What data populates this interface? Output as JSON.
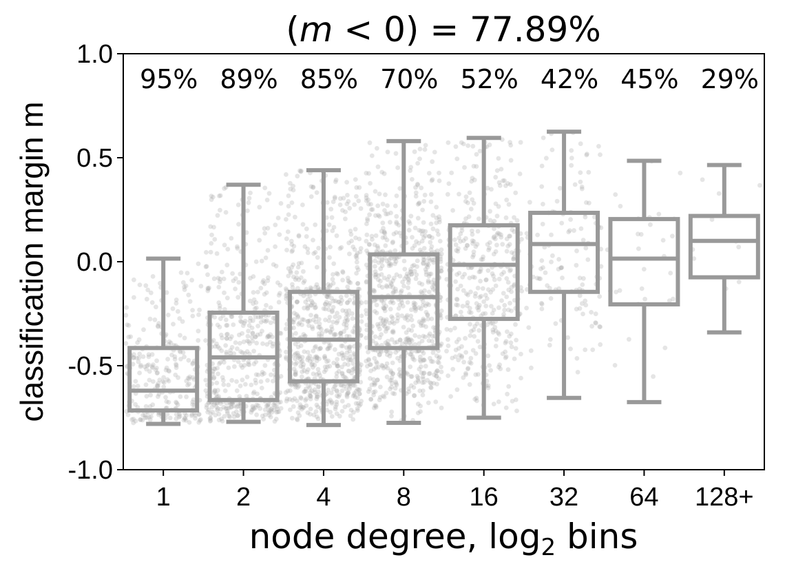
{
  "chart_data": {
    "type": "box",
    "title": {
      "prefix": "(",
      "variable": "m",
      "relation": " < 0) = ",
      "value": "77.89%"
    },
    "xlabel": {
      "text": "node degree, log",
      "subscript": "2",
      "suffix": " bins"
    },
    "ylabel": "classification margin m",
    "ylim": [
      -1.0,
      1.0
    ],
    "yticks": [
      -1.0,
      -0.5,
      0.0,
      0.5,
      1.0
    ],
    "ytick_labels": [
      "-1.0",
      "-0.5",
      "0.0",
      "0.5",
      "1.0"
    ],
    "categories": [
      "1",
      "2",
      "4",
      "8",
      "16",
      "32",
      "64",
      "128+"
    ],
    "annotations": [
      "95%",
      "89%",
      "85%",
      "70%",
      "52%",
      "42%",
      "45%",
      "29%"
    ],
    "box_color": "#999999",
    "point_color": "#aaaaaa",
    "boxes": [
      {
        "category": "1",
        "whisker_low": -0.78,
        "q1": -0.715,
        "median": -0.62,
        "q3": -0.415,
        "whisker_high": 0.015,
        "n_points": 260
      },
      {
        "category": "2",
        "whisker_low": -0.77,
        "q1": -0.665,
        "median": -0.46,
        "q3": -0.245,
        "whisker_high": 0.37,
        "n_points": 460
      },
      {
        "category": "4",
        "whisker_low": -0.785,
        "q1": -0.575,
        "median": -0.375,
        "q3": -0.145,
        "whisker_high": 0.44,
        "n_points": 700
      },
      {
        "category": "8",
        "whisker_low": -0.775,
        "q1": -0.415,
        "median": -0.17,
        "q3": 0.035,
        "whisker_high": 0.58,
        "n_points": 700
      },
      {
        "category": "16",
        "whisker_low": -0.75,
        "q1": -0.275,
        "median": -0.015,
        "q3": 0.175,
        "whisker_high": 0.595,
        "n_points": 380
      },
      {
        "category": "32",
        "whisker_low": -0.655,
        "q1": -0.145,
        "median": 0.085,
        "q3": 0.235,
        "whisker_high": 0.625,
        "n_points": 130
      },
      {
        "category": "64",
        "whisker_low": -0.675,
        "q1": -0.205,
        "median": 0.015,
        "q3": 0.205,
        "whisker_high": 0.485,
        "n_points": 30
      },
      {
        "category": "128+",
        "whisker_low": -0.34,
        "q1": -0.075,
        "median": 0.1,
        "q3": 0.22,
        "whisker_high": 0.465,
        "n_points": 10
      }
    ]
  }
}
